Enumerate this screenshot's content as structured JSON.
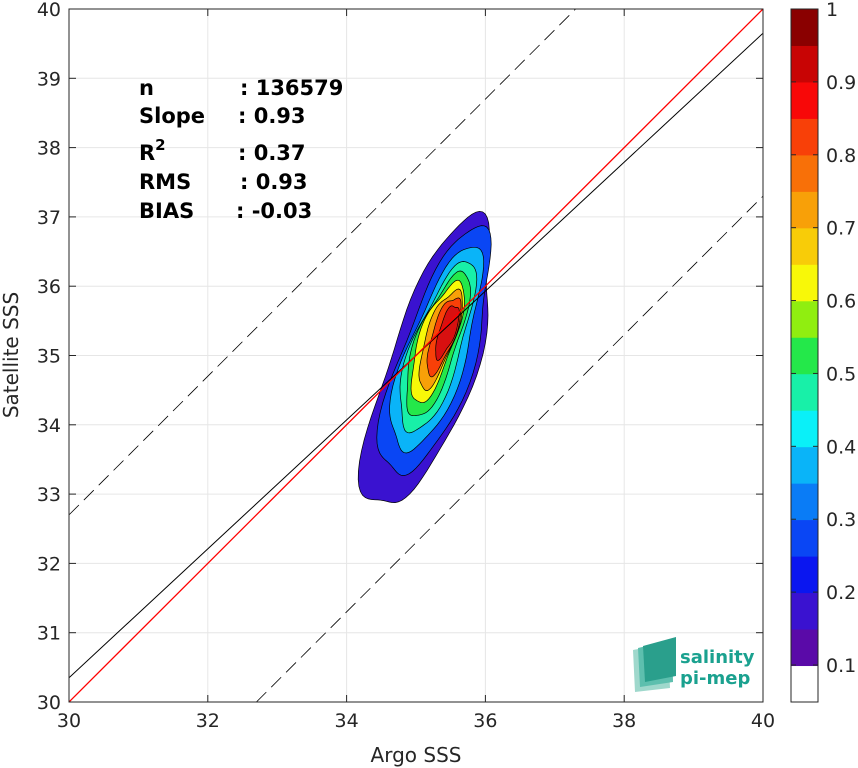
{
  "chart_data": {
    "type": "contour-density-scatter",
    "xlabel": "Argo SSS",
    "ylabel": "Satellite SSS",
    "xlim": [
      30,
      40
    ],
    "ylim": [
      30,
      40
    ],
    "x_ticks": [
      30,
      32,
      34,
      36,
      38,
      40
    ],
    "y_ticks": [
      30,
      31,
      32,
      33,
      34,
      35,
      36,
      37,
      38,
      39,
      40
    ],
    "grid": true,
    "stats": [
      {
        "label": "n",
        "value": ": 136579"
      },
      {
        "label": "Slope",
        "value": ": 0.93"
      },
      {
        "label": "R",
        "sup": "2",
        "value": ": 0.37"
      },
      {
        "label": "RMS",
        "value": ": 0.93"
      },
      {
        "label": "BIAS",
        "value": ": -0.03"
      }
    ],
    "lines": {
      "one_to_one": {
        "color": "#ff0000",
        "points": [
          [
            30,
            30
          ],
          [
            40,
            40
          ]
        ]
      },
      "regression": {
        "color": "#000000",
        "slope": 0.93,
        "intercept_at_30": 30.35
      },
      "plus_minus_bounds": {
        "offset": 2.7,
        "style": "dashed",
        "color": "#000000"
      }
    },
    "density_center": {
      "x": 35.4,
      "y": 35.4
    },
    "colorbar": {
      "min": 0,
      "max": 1,
      "tick_values": [
        0.1,
        0.2,
        0.3,
        0.4,
        0.5,
        0.6,
        0.7,
        0.8,
        0.9,
        1
      ],
      "tick_labels": [
        "0.1",
        "0.2",
        "0.3",
        "0.4",
        "0.5",
        "0.6",
        "0.7",
        "0.8",
        "0.9",
        "1"
      ],
      "colors": [
        "#ffffff",
        "#5a0aa8",
        "#3a12d0",
        "#0a16f0",
        "#0a46f4",
        "#0a7cf6",
        "#0ab4f8",
        "#0af0f8",
        "#18f0a8",
        "#24e84a",
        "#90ee10",
        "#f8f808",
        "#f8cc08",
        "#f8a008",
        "#f87008",
        "#f84008",
        "#f80808",
        "#c80404",
        "#8a0000"
      ]
    },
    "contour_levels": [
      {
        "level": 0.05,
        "color": "#3a12d0",
        "cx": 35.2,
        "cy": 34.85,
        "a": 2.4,
        "b": 0.92
      },
      {
        "level": 0.15,
        "color": "#0a46f4",
        "cx": 35.3,
        "cy": 35.0,
        "a": 2.05,
        "b": 0.78
      },
      {
        "level": 0.25,
        "color": "#0ab4f8",
        "cx": 35.3,
        "cy": 35.05,
        "a": 1.7,
        "b": 0.63
      },
      {
        "level": 0.35,
        "color": "#18f0a8",
        "cx": 35.3,
        "cy": 35.1,
        "a": 1.42,
        "b": 0.52
      },
      {
        "level": 0.45,
        "color": "#24e84a",
        "cx": 35.3,
        "cy": 35.15,
        "a": 1.2,
        "b": 0.44
      },
      {
        "level": 0.55,
        "color": "#f8f808",
        "cx": 35.3,
        "cy": 35.2,
        "a": 1.0,
        "b": 0.37
      },
      {
        "level": 0.65,
        "color": "#f8a008",
        "cx": 35.35,
        "cy": 35.25,
        "a": 0.82,
        "b": 0.3
      },
      {
        "level": 0.75,
        "color": "#f84008",
        "cx": 35.4,
        "cy": 35.3,
        "a": 0.64,
        "b": 0.24
      },
      {
        "level": 0.85,
        "color": "#d81010",
        "cx": 35.45,
        "cy": 35.35,
        "a": 0.44,
        "b": 0.17
      }
    ],
    "logo": {
      "line1": "salinity",
      "line2": "pi-mep"
    }
  }
}
